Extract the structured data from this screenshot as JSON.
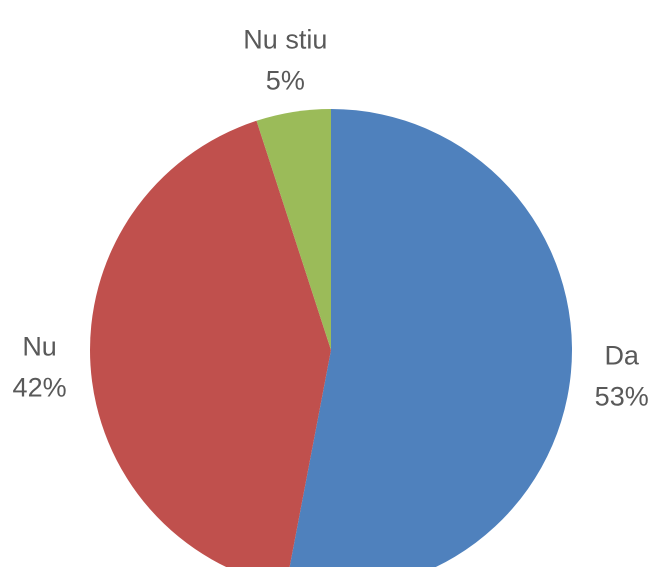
{
  "chart_data": {
    "type": "pie",
    "categories": [
      "Da",
      "Nu",
      "Nu stiu"
    ],
    "values": [
      53,
      42,
      5
    ],
    "value_labels": [
      "53%",
      "42%",
      "5%"
    ],
    "colors": [
      "#4f81bd",
      "#c0504d",
      "#9bbb59"
    ]
  }
}
